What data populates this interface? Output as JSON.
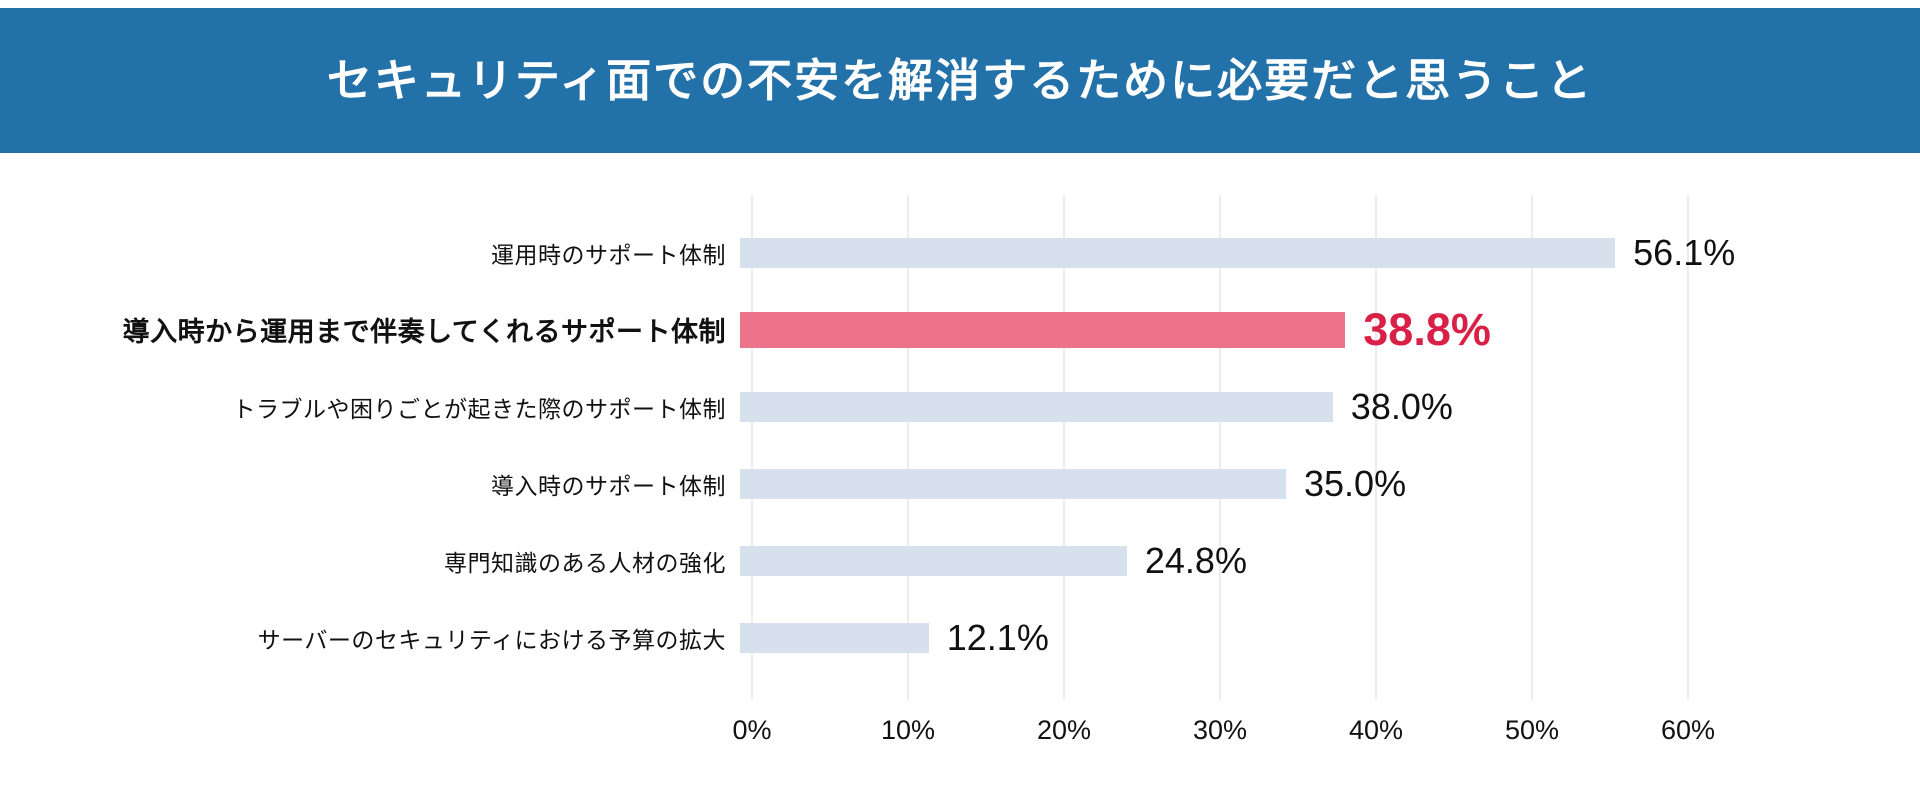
{
  "header": {
    "title": "セキュリティ面での不安を解消するために必要だと思うこと",
    "background_color": "#2271A9",
    "text_color": "#FFFFFF"
  },
  "chart_data": {
    "type": "bar",
    "orientation": "horizontal",
    "title": "セキュリティ面での不安を解消するために必要だと思うこと",
    "categories": [
      "運用時のサポート体制",
      "導入時から運用まで伴奏してくれるサポート体制",
      "トラブルや困りごとが起きた際のサポート体制",
      "導入時のサポート体制",
      "専門知識のある人材の強化",
      "サーバーのセキュリティにおける予算の拡大"
    ],
    "values": [
      56.1,
      38.8,
      38.0,
      35.0,
      24.8,
      12.1
    ],
    "value_labels": [
      "56.1%",
      "38.8%",
      "38.0%",
      "35.0%",
      "24.8%",
      "12.1%"
    ],
    "highlight_index": 1,
    "xlabel": "",
    "ylabel": "",
    "xlim": [
      0,
      60
    ],
    "x_ticks": [
      "0%",
      "10%",
      "20%",
      "30%",
      "40%",
      "50%",
      "60%"
    ],
    "x_tick_values": [
      0,
      10,
      20,
      30,
      40,
      50,
      60
    ],
    "grid": true,
    "gridline_color": "#ECECEC",
    "bar_color": "#D6E1ED",
    "highlight_bar_color": "#EC7389",
    "value_color": "#111111",
    "highlight_value_color": "#D92148",
    "legend": null
  }
}
